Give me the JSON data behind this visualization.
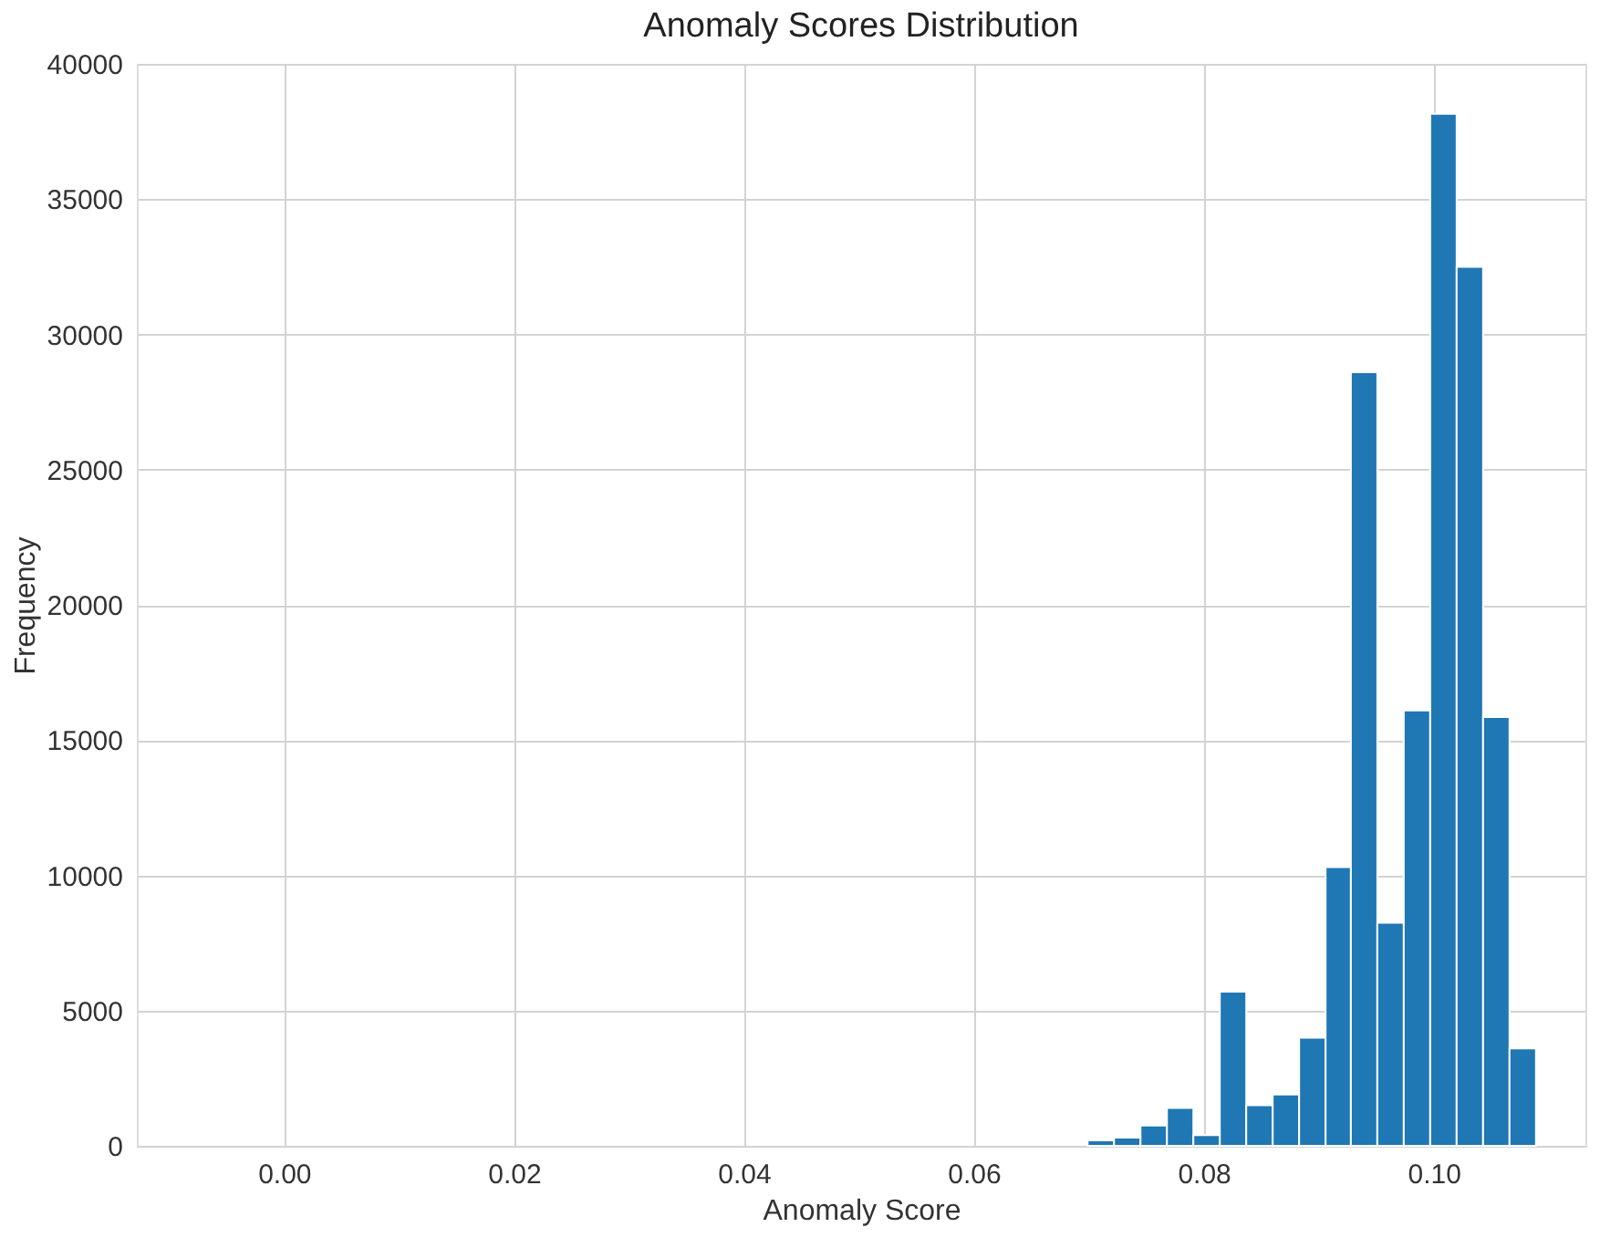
{
  "chart_data": {
    "type": "histogram",
    "title": "Anomaly Scores Distribution",
    "xlabel": "Anomaly Score",
    "ylabel": "Frequency",
    "bins": [
      0.0699,
      0.0722,
      0.0745,
      0.0768,
      0.0791,
      0.0814,
      0.0837,
      0.086,
      0.0883,
      0.0906,
      0.0928,
      0.0951,
      0.0974,
      0.0997,
      0.102,
      0.1043,
      0.1066,
      0.1089
    ],
    "values": [
      200,
      300,
      750,
      1400,
      400,
      5700,
      1500,
      1900,
      4000,
      10300,
      28600,
      8250,
      16100,
      38150,
      32500,
      15850,
      3600
    ],
    "color": "#1f77b4",
    "xlim": [
      -0.0128,
      0.1132
    ],
    "xticks": [
      {
        "value": 0,
        "label": "0.00"
      },
      {
        "value": 0.02,
        "label": "0.02"
      },
      {
        "value": 0.04,
        "label": "0.04"
      },
      {
        "value": 0.06,
        "label": "0.06"
      },
      {
        "value": 0.08,
        "label": "0.08"
      },
      {
        "value": 0.1,
        "label": "0.10"
      }
    ],
    "ylim": [
      0,
      40000
    ],
    "yticks": [
      0,
      5000,
      10000,
      15000,
      20000,
      25000,
      30000,
      35000,
      40000
    ],
    "grid": true
  }
}
